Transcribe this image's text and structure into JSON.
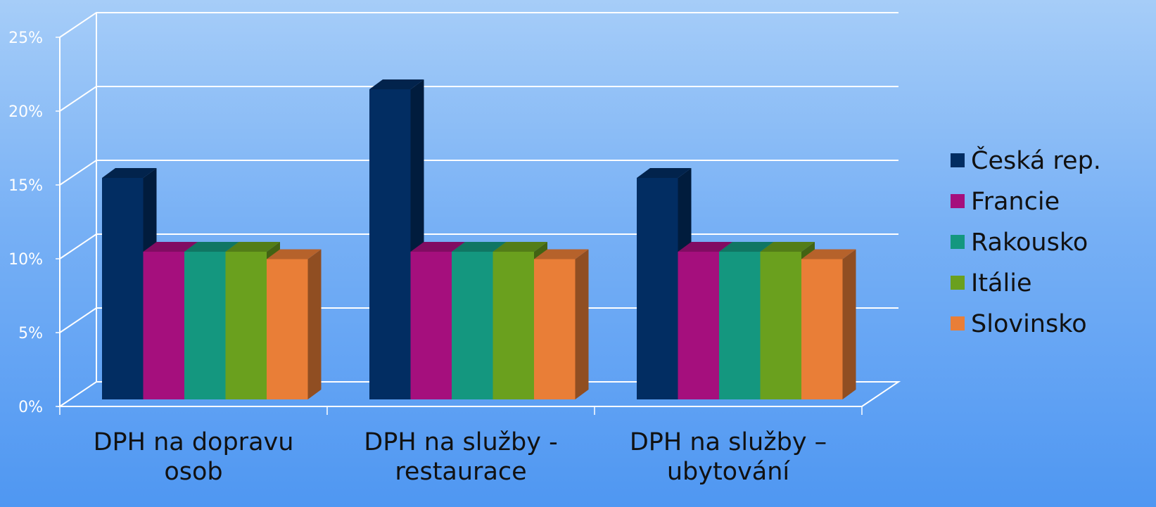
{
  "chart_data": {
    "type": "bar",
    "three_d": true,
    "categories": [
      [
        "DPH na dopravu",
        "osob"
      ],
      [
        "DPH na služby -",
        "restaurace"
      ],
      [
        "DPH na služby –",
        "ubytování"
      ]
    ],
    "series": [
      {
        "name": "Česká rep.",
        "color": "#022d62",
        "values": [
          15,
          21,
          15
        ]
      },
      {
        "name": "Francie",
        "color": "#a50f7d",
        "values": [
          10,
          10,
          10
        ]
      },
      {
        "name": "Rakousko",
        "color": "#14977f",
        "values": [
          10,
          10,
          10
        ]
      },
      {
        "name": "Itálie",
        "color": "#6aa01e",
        "values": [
          10,
          10,
          10
        ]
      },
      {
        "name": "Slovinsko",
        "color": "#e97e37",
        "values": [
          9.5,
          9.5,
          9.5
        ]
      }
    ],
    "y_ticks": [
      "0%",
      "5%",
      "10%",
      "15%",
      "20%",
      "25%"
    ],
    "ylim": [
      0,
      25
    ],
    "grid": true,
    "legend": "right"
  }
}
